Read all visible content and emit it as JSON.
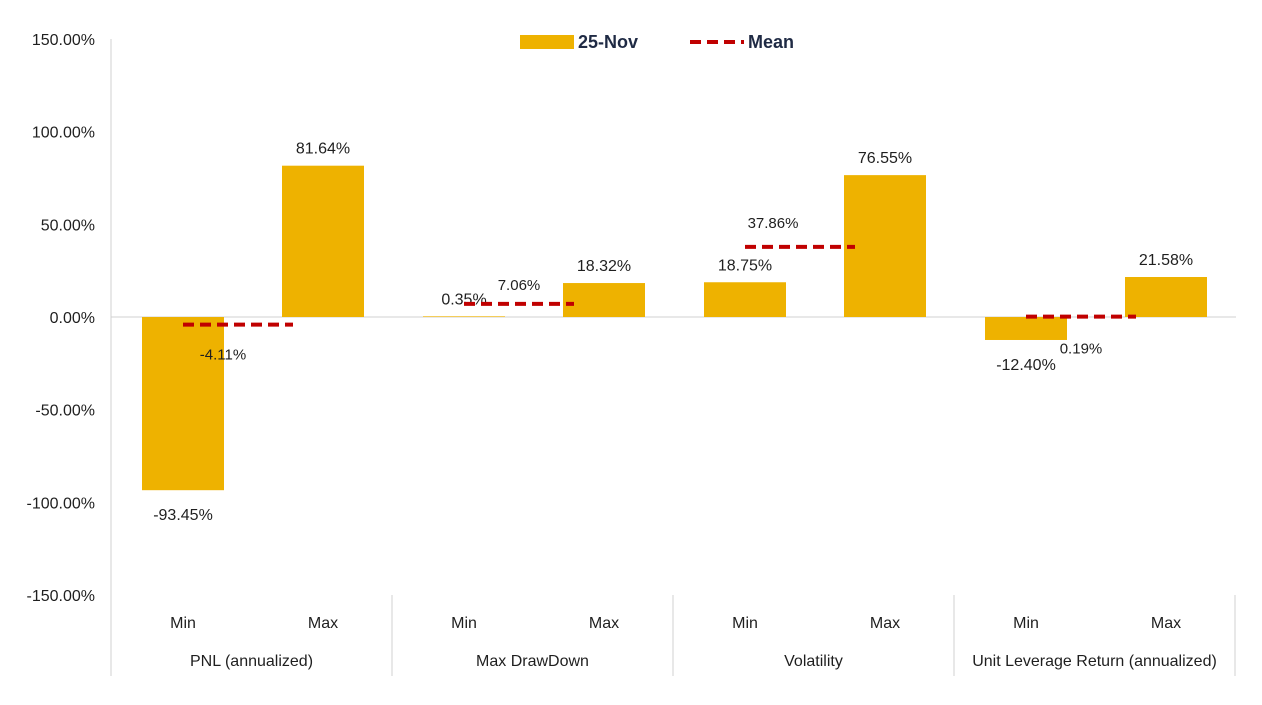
{
  "chart_data": {
    "type": "bar",
    "title": "",
    "xlabel": "",
    "ylabel": "",
    "ylim": [
      -150,
      150
    ],
    "yticks": [
      150,
      100,
      50,
      0,
      -50,
      -100,
      -150
    ],
    "ytick_labels": [
      "150.00%",
      "100.00%",
      "50.00%",
      "0.00%",
      "-50.00%",
      "-100.00%",
      "-150.00%"
    ],
    "groups": [
      {
        "name": "PNL (annualized)",
        "categories": [
          "Min",
          "Max"
        ],
        "values": [
          -93.45,
          81.64
        ],
        "value_labels": [
          "-93.45%",
          "81.64%"
        ],
        "mean": -4.11,
        "mean_label": "-4.11%"
      },
      {
        "name": "Max DrawDown",
        "categories": [
          "Min",
          "Max"
        ],
        "values": [
          0.35,
          18.32
        ],
        "value_labels": [
          "0.35%",
          "18.32%"
        ],
        "mean": 7.06,
        "mean_label": "7.06%"
      },
      {
        "name": "Volatility",
        "categories": [
          "Min",
          "Max"
        ],
        "values": [
          18.75,
          76.55
        ],
        "value_labels": [
          "18.75%",
          "76.55%"
        ],
        "mean": 37.86,
        "mean_label": "37.86%"
      },
      {
        "name": "Unit Leverage Return (annualized)",
        "categories": [
          "Min",
          "Max"
        ],
        "values": [
          -12.4,
          21.58
        ],
        "value_labels": [
          "-12.40%",
          "21.58%"
        ],
        "mean": 0.19,
        "mean_label": "0.19%"
      }
    ],
    "series": [
      {
        "name": "25-Nov",
        "kind": "bar",
        "color": "#EEB200"
      },
      {
        "name": "Mean",
        "kind": "dashed-line",
        "color": "#C00000"
      }
    ],
    "legend_position": "top-center",
    "grid": false
  }
}
